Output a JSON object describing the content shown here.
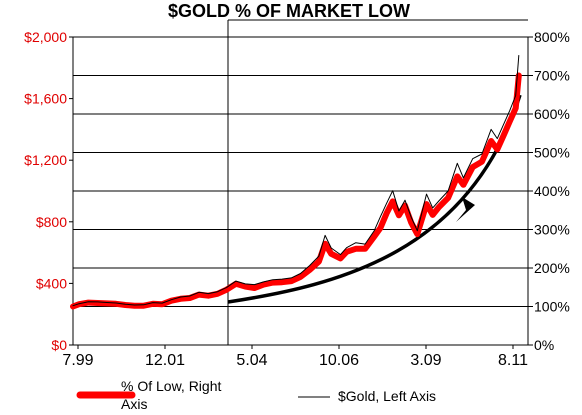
{
  "chart_data": {
    "type": "line",
    "title": "$GOLD % OF MARKET LOW",
    "x_tick_labels": [
      "7.99",
      "12.01",
      "5.04",
      "10.06",
      "3.09",
      "8.11"
    ],
    "y_left": {
      "label": "$Gold, Left Axis",
      "range": [
        0,
        2000
      ],
      "ticks": [
        "$0",
        "$400",
        "$800",
        "$1,200",
        "$1,600",
        "$2,000"
      ]
    },
    "y_right": {
      "label": "% Of Low, Right Axis",
      "range": [
        0,
        800
      ],
      "ticks": [
        "0%",
        "100%",
        "200%",
        "300%",
        "400%",
        "500%",
        "600%",
        "700%",
        "800%"
      ]
    },
    "grid": true,
    "legend_position": "bottom",
    "annotations": [
      "upward curved arrow showing accelerating trend"
    ],
    "series": [
      {
        "name": "% Of Low, Right Axis",
        "axis": "right",
        "color": "#ff0000",
        "style": "thick",
        "points": [
          [
            "1999-07",
            100
          ],
          [
            "1999-09",
            106
          ],
          [
            "1999-12",
            110
          ],
          [
            "2000-03",
            109
          ],
          [
            "2000-06",
            108
          ],
          [
            "2000-09",
            107
          ],
          [
            "2000-12",
            104
          ],
          [
            "2001-03",
            102
          ],
          [
            "2001-06",
            102
          ],
          [
            "2001-09",
            107
          ],
          [
            "2001-12",
            106
          ],
          [
            "2002-03",
            115
          ],
          [
            "2002-06",
            120
          ],
          [
            "2002-09",
            122
          ],
          [
            "2002-12",
            131
          ],
          [
            "2003-03",
            128
          ],
          [
            "2003-06",
            133
          ],
          [
            "2003-09",
            144
          ],
          [
            "2003-12",
            159
          ],
          [
            "2004-03",
            152
          ],
          [
            "2004-06",
            148
          ],
          [
            "2004-09",
            157
          ],
          [
            "2004-12",
            162
          ],
          [
            "2005-03",
            163
          ],
          [
            "2005-06",
            166
          ],
          [
            "2005-09",
            177
          ],
          [
            "2005-12",
            195
          ],
          [
            "2006-03",
            217
          ],
          [
            "2006-05",
            263
          ],
          [
            "2006-07",
            237
          ],
          [
            "2006-10",
            225
          ],
          [
            "2006-12",
            242
          ],
          [
            "2007-03",
            250
          ],
          [
            "2007-06",
            250
          ],
          [
            "2007-09",
            282
          ],
          [
            "2007-11",
            304
          ],
          [
            "2008-01",
            342
          ],
          [
            "2008-03",
            373
          ],
          [
            "2008-05",
            337
          ],
          [
            "2008-07",
            362
          ],
          [
            "2008-09",
            318
          ],
          [
            "2008-11",
            288
          ],
          [
            "2009-02",
            366
          ],
          [
            "2009-04",
            338
          ],
          [
            "2009-06",
            358
          ],
          [
            "2009-09",
            382
          ],
          [
            "2009-12",
            438
          ],
          [
            "2010-02",
            416
          ],
          [
            "2010-05",
            462
          ],
          [
            "2010-08",
            476
          ],
          [
            "2010-11",
            530
          ],
          [
            "2011-01",
            508
          ],
          [
            "2011-03",
            543
          ],
          [
            "2011-05",
            580
          ],
          [
            "2011-07",
            615
          ],
          [
            "2011-08",
            700
          ]
        ]
      },
      {
        "name": "$Gold, Left Axis",
        "axis": "left",
        "color": "#000000",
        "style": "thin",
        "points": [
          [
            "1999-07",
            255
          ],
          [
            "1999-09",
            268
          ],
          [
            "1999-12",
            281
          ],
          [
            "2000-03",
            280
          ],
          [
            "2000-06",
            276
          ],
          [
            "2000-09",
            273
          ],
          [
            "2000-12",
            265
          ],
          [
            "2001-03",
            260
          ],
          [
            "2001-06",
            261
          ],
          [
            "2001-09",
            275
          ],
          [
            "2001-12",
            272
          ],
          [
            "2002-03",
            294
          ],
          [
            "2002-06",
            312
          ],
          [
            "2002-09",
            318
          ],
          [
            "2002-12",
            342
          ],
          [
            "2003-03",
            334
          ],
          [
            "2003-06",
            346
          ],
          [
            "2003-09",
            374
          ],
          [
            "2003-12",
            415
          ],
          [
            "2004-03",
            397
          ],
          [
            "2004-06",
            392
          ],
          [
            "2004-09",
            410
          ],
          [
            "2004-12",
            424
          ],
          [
            "2005-03",
            428
          ],
          [
            "2005-06",
            436
          ],
          [
            "2005-09",
            464
          ],
          [
            "2005-12",
            516
          ],
          [
            "2006-03",
            577
          ],
          [
            "2006-05",
            712
          ],
          [
            "2006-07",
            630
          ],
          [
            "2006-10",
            587
          ],
          [
            "2006-12",
            632
          ],
          [
            "2007-03",
            664
          ],
          [
            "2007-06",
            655
          ],
          [
            "2007-09",
            743
          ],
          [
            "2007-11",
            833
          ],
          [
            "2008-01",
            920
          ],
          [
            "2008-03",
            1002
          ],
          [
            "2008-05",
            870
          ],
          [
            "2008-07",
            940
          ],
          [
            "2008-09",
            830
          ],
          [
            "2008-11",
            742
          ],
          [
            "2009-02",
            980
          ],
          [
            "2009-04",
            890
          ],
          [
            "2009-06",
            935
          ],
          [
            "2009-09",
            1000
          ],
          [
            "2009-12",
            1180
          ],
          [
            "2010-02",
            1085
          ],
          [
            "2010-05",
            1210
          ],
          [
            "2010-08",
            1240
          ],
          [
            "2010-11",
            1400
          ],
          [
            "2011-01",
            1340
          ],
          [
            "2011-03",
            1430
          ],
          [
            "2011-05",
            1520
          ],
          [
            "2011-07",
            1620
          ],
          [
            "2011-08",
            1880
          ]
        ]
      }
    ]
  },
  "legend": {
    "red_label_line1": "% Of Low, Right",
    "red_label_line2": "Axis",
    "black_label": "$Gold, Left Axis"
  }
}
